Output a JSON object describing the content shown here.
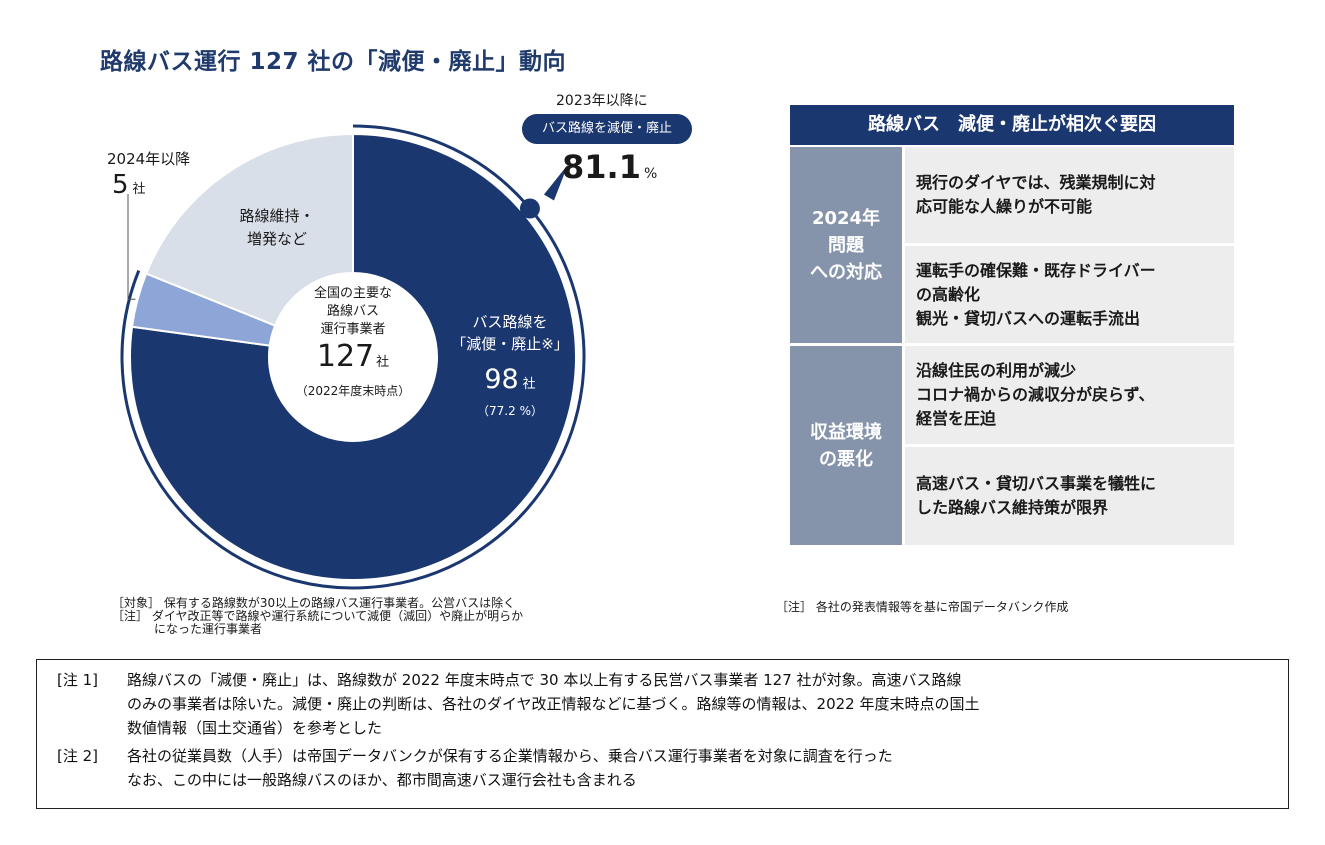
{
  "title": "路線バス運行 127 社の「減便・廃止」動向",
  "chart_data": {
    "type": "pie",
    "title": "路線バス運行 127 社の「減便・廃止」動向",
    "total": 127,
    "slices": [
      {
        "name": "バス路線を「減便・廃止※」",
        "value": 98,
        "percent": 77.2,
        "color": "#1b3770"
      },
      {
        "name": "2024年以降",
        "value": 5,
        "color": "#8ea5d8"
      },
      {
        "name": "路線維持・増発など",
        "value": 24,
        "color": "#d9dfe8"
      }
    ],
    "center": {
      "lines": [
        "全国の主要な",
        "路線バス",
        "運行事業者"
      ],
      "value": "127",
      "unit": "社",
      "as_of": "（2022年度末時点）"
    },
    "dark_label": {
      "lines": [
        "バス路線を",
        "「減便・廃止※」"
      ],
      "value": "98",
      "unit": "社",
      "percent": "（77.2 %）"
    },
    "maintain_label": [
      "路線維持・",
      "増発など"
    ],
    "since2024": {
      "label": "2024年以降",
      "value": "5",
      "unit": "社"
    },
    "since2023": {
      "label": "2023年以降に",
      "pill": "バス路線を減便・廃止",
      "value": "81.1",
      "unit": "%",
      "percent": 81.1
    }
  },
  "chart_notes": [
    "［対象］ 保有する路線数が30以上の路線バス運行事業者。公営バスは除く",
    "［注］ ダイヤ改正等で路線や運行系統について減便（減回）や廃止が明らか",
    "になった運行事業者"
  ],
  "table": {
    "title": "路線バス　減便・廃止が相次ぐ要因",
    "groups": [
      {
        "category": [
          "2024年",
          "問題",
          "への対応"
        ],
        "items": [
          [
            "現行のダイヤでは、残業規制に対",
            "応可能な人繰りが不可能"
          ],
          [
            "運転手の確保難・既存ドライバー",
            "の高齢化",
            "観光・貸切バスへの運転手流出"
          ]
        ]
      },
      {
        "category": [
          "収益環境",
          "の悪化"
        ],
        "items": [
          [
            "沿線住民の利用が減少",
            "コロナ禍からの減収分が戻らず、",
            "経営を圧迫"
          ],
          [
            "高速バス・貸切バス事業を犠牲に",
            "した路線バス維持策が限界"
          ]
        ]
      }
    ],
    "source": "［注］ 各社の発表情報等を基に帝国データバンク作成"
  },
  "notes": [
    {
      "label": "[注 1]",
      "lines": [
        "路線バスの「減便・廃止」は、路線数が 2022 年度末時点で 30 本以上有する民営バス事業者 127 社が対象。高速バス路線",
        "のみの事業者は除いた。減便・廃止の判断は、各社のダイヤ改正情報などに基づく。路線等の情報は、2022 年度末時点の国土",
        "数値情報（国土交通省）を参考とした"
      ]
    },
    {
      "label": "[注 2]",
      "lines": [
        "各社の従業員数（人手）は帝国データバンクが保有する企業情報から、乗合バス運行事業者を対象に調査を行った",
        "なお、この中には一般路線バスのほか、都市間高速バス運行会社も含まれる"
      ]
    }
  ]
}
